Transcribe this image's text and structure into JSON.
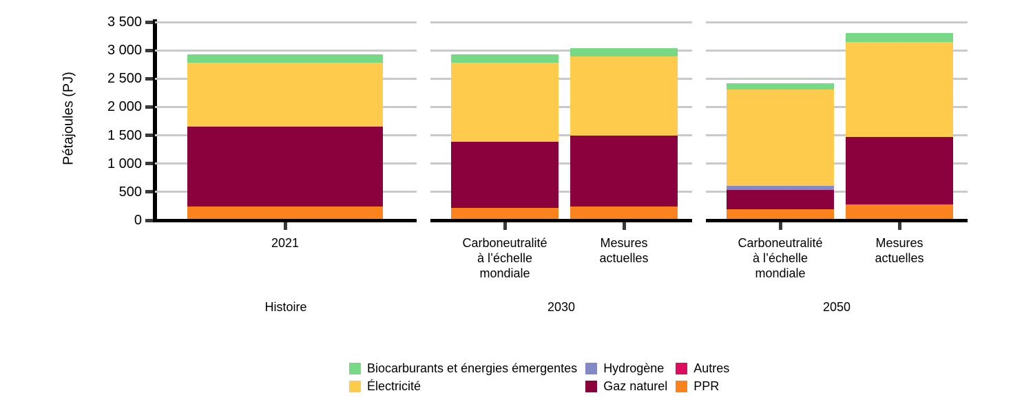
{
  "figure": {
    "background": "#FFFFFF",
    "y_axis": {
      "label": "Pétajoules (PJ)",
      "tick_labels": [
        "0",
        "500",
        "1 000",
        "1 500",
        "2 000",
        "2 500",
        "3 000",
        "3 500"
      ],
      "tick_values": [
        0,
        500,
        1000,
        1500,
        2000,
        2500,
        3000,
        3500
      ]
    }
  },
  "chart_data": {
    "type": "bar",
    "stacked": true,
    "title": "",
    "xlabel": "",
    "ylabel": "Pétajoules (PJ)",
    "ylim": [
      0,
      3500
    ],
    "ytick_step": 500,
    "grid": "horizontal",
    "legend_position": "bottom",
    "panels": [
      {
        "label": "Histoire",
        "bars": [
          0
        ]
      },
      {
        "label": "2030",
        "bars": [
          1,
          2
        ]
      },
      {
        "label": "2050",
        "bars": [
          3,
          4
        ]
      }
    ],
    "bars": [
      {
        "label_lines": [
          "2021"
        ]
      },
      {
        "label_lines": [
          "Carboneutralité",
          "à l’échelle",
          "mondiale"
        ]
      },
      {
        "label_lines": [
          "Mesures",
          "actuelles"
        ]
      },
      {
        "label_lines": [
          "Carboneutralité",
          "à l’échelle",
          "mondiale"
        ]
      },
      {
        "label_lines": [
          "Mesures",
          "actuelles"
        ]
      }
    ],
    "series": [
      {
        "name": "PPR",
        "slug": "ppr",
        "color": "#FB831D",
        "values": [
          240,
          220,
          240,
          200,
          280
        ]
      },
      {
        "name": "Gaz naturel",
        "slug": "gaz-naturel",
        "color": "#8B013D",
        "values": [
          1410,
          1170,
          1250,
          335,
          1190
        ]
      },
      {
        "name": "Hydrogène",
        "slug": "hydrogene",
        "color": "#8289C4",
        "values": [
          0,
          0,
          0,
          75,
          0
        ]
      },
      {
        "name": "Autres",
        "slug": "autres",
        "color": "#DD0D5F",
        "values": [
          0,
          0,
          0,
          0,
          0
        ]
      },
      {
        "name": "Électricité",
        "slug": "electricite",
        "color": "#FFCB4D",
        "values": [
          1130,
          1390,
          1400,
          1700,
          1680
        ]
      },
      {
        "name": "Biocarburants et énergies émergentes",
        "slug": "biocarburants",
        "color": "#77D885",
        "values": [
          150,
          150,
          150,
          110,
          150
        ]
      }
    ],
    "totals": [
      2930,
      2930,
      3040,
      2420,
      3300
    ]
  },
  "legend": {
    "items": [
      {
        "label": "Biocarburants et énergies émergentes",
        "slug": "biocarburants",
        "color": "#77D885"
      },
      {
        "label": "Hydrogène",
        "slug": "hydrogene",
        "color": "#8289C4"
      },
      {
        "label": "Autres",
        "slug": "autres",
        "color": "#DD0D5F"
      },
      {
        "label": "Électricité",
        "slug": "electricite",
        "color": "#FFCB4D"
      },
      {
        "label": "Gaz naturel",
        "slug": "gaz-naturel",
        "color": "#8B013D"
      },
      {
        "label": "PPR",
        "slug": "ppr",
        "color": "#FB831D"
      }
    ]
  },
  "colors": {
    "gridline": "#C9C9C9",
    "axis": "#000000",
    "tick": "#3A3A3A",
    "text": "#000000"
  }
}
